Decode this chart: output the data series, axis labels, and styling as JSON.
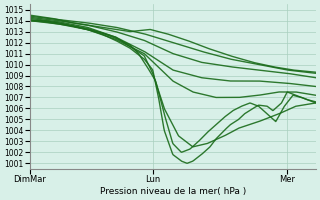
{
  "title": "",
  "xlabel": "Pression niveau de la mer( hPa )",
  "ylim": [
    1001,
    1015
  ],
  "yticks": [
    1001,
    1002,
    1003,
    1004,
    1005,
    1006,
    1007,
    1008,
    1009,
    1010,
    1011,
    1012,
    1013,
    1014,
    1015
  ],
  "xtick_labels": [
    "DimMar",
    "Lun",
    "Mer"
  ],
  "xtick_positions": [
    0.0,
    0.43,
    0.9
  ],
  "bg_color": "#d8f0e8",
  "grid_color": "#aacfbf",
  "line_color": "#1a6b1a",
  "line_width": 1.0
}
